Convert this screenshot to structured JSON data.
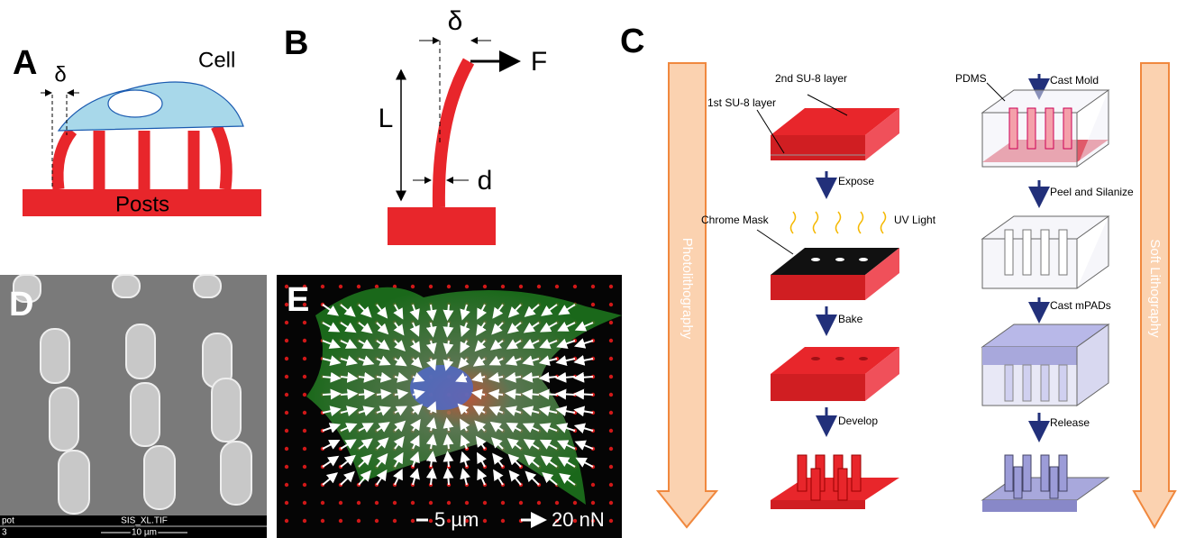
{
  "panels": {
    "a": {
      "label": "A",
      "delta": "δ",
      "cell": "Cell",
      "posts": "Posts"
    },
    "b": {
      "label": "B",
      "delta": "δ",
      "force": "F",
      "length": "L",
      "diameter": "d"
    },
    "c": {
      "label": "C",
      "left_process": "Photolithography",
      "right_process": "Soft Lithography",
      "steps_left": [
        "2nd SU-8 layer",
        "1st SU-8 layer",
        "Expose",
        "Chrome Mask",
        "UV Light",
        "Bake",
        "Develop"
      ],
      "steps_right": [
        "PDMS",
        "Cast Mold",
        "Peel and Silanize",
        "Cast mPADs",
        "Release"
      ]
    },
    "d": {
      "label": "D",
      "file": "SIS_XL.TIF",
      "scale": "10 µm",
      "corner_top": "pot",
      "corner_bottom": "3"
    },
    "e": {
      "label": "E",
      "scale_length": "5 µm",
      "scale_force": "20 nN"
    }
  }
}
